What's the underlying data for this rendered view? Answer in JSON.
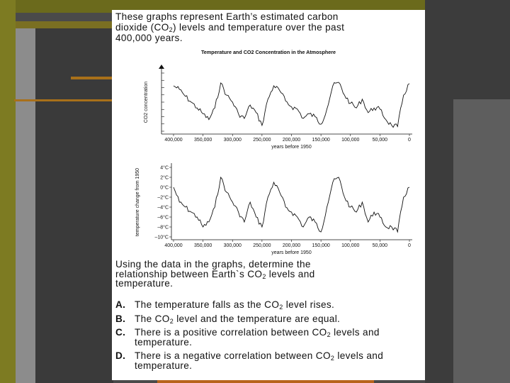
{
  "intro": {
    "text_1": "These graphs represent Earth’s estimated carbon",
    "text_2a": "dioxide (CO",
    "text_2_sub": "2",
    "text_2b": ") levels and temperature over the past",
    "text_3": "400,000 years."
  },
  "chart_data": [
    {
      "type": "line",
      "title": "Temperature and CO2 Concentration in the Atmosphere",
      "ylabel": "CO2 concentration",
      "xlabel": "years before 1950",
      "x_ticks": [
        "400,000",
        "350,000",
        "300,000",
        "250,000",
        "200,000",
        "150,000",
        "100,000",
        "50,000",
        "0"
      ],
      "xlim": [
        400000,
        0
      ],
      "ylim": [
        0,
        1
      ],
      "y_tick_labels": [],
      "x": [
        400000,
        390000,
        380000,
        370000,
        360000,
        350000,
        340000,
        330000,
        320000,
        310000,
        300000,
        290000,
        280000,
        270000,
        260000,
        250000,
        240000,
        230000,
        220000,
        210000,
        200000,
        190000,
        180000,
        170000,
        160000,
        150000,
        140000,
        130000,
        120000,
        110000,
        100000,
        90000,
        80000,
        70000,
        60000,
        50000,
        40000,
        30000,
        20000,
        10000,
        0
      ],
      "series": [
        {
          "values": [
            0.78,
            0.72,
            0.6,
            0.5,
            0.4,
            0.3,
            0.2,
            0.4,
            0.83,
            0.62,
            0.5,
            0.3,
            0.22,
            0.45,
            0.32,
            0.1,
            0.55,
            0.78,
            0.7,
            0.52,
            0.42,
            0.38,
            0.22,
            0.3,
            0.25,
            0.12,
            0.38,
            0.78,
            0.84,
            0.62,
            0.48,
            0.4,
            0.55,
            0.32,
            0.4,
            0.38,
            0.2,
            0.1,
            0.08,
            0.62,
            0.82
          ]
        }
      ]
    },
    {
      "type": "line",
      "title": "",
      "ylabel": "temperature change from 1950",
      "xlabel": "years before 1950",
      "x_ticks": [
        "400,000",
        "350,000",
        "300,000",
        "250,000",
        "200,000",
        "150,000",
        "100,000",
        "50,000",
        "0"
      ],
      "y_ticks": [
        "4°C",
        "2°C",
        "0°C",
        "–2°C",
        "–4°C",
        "–6°C",
        "–8°C",
        "–10°C"
      ],
      "xlim": [
        400000,
        0
      ],
      "ylim": [
        -10,
        4
      ],
      "x": [
        400000,
        390000,
        380000,
        370000,
        360000,
        350000,
        340000,
        330000,
        320000,
        310000,
        300000,
        290000,
        280000,
        270000,
        260000,
        250000,
        240000,
        230000,
        220000,
        210000,
        200000,
        190000,
        180000,
        170000,
        160000,
        150000,
        140000,
        130000,
        120000,
        110000,
        100000,
        90000,
        80000,
        70000,
        60000,
        50000,
        40000,
        30000,
        20000,
        10000,
        0
      ],
      "series": [
        {
          "values": [
            0,
            -3,
            -4,
            -5,
            -6,
            -8,
            -7,
            -4,
            2,
            -1,
            -3,
            -5,
            -7,
            -3,
            -6,
            -8,
            -2,
            1,
            -1,
            -4,
            -5,
            -6,
            -8,
            -6,
            -7,
            -9,
            -4,
            1,
            2,
            -2,
            -4,
            -5,
            -3,
            -7,
            -5,
            -6,
            -8,
            -8,
            -9,
            -2,
            0
          ]
        }
      ]
    }
  ],
  "question": {
    "line_1": "Using the data in the graphs, determine the",
    "line_2a": "relationship between Earth`s CO",
    "line_2_sub": "2",
    "line_2b": " levels and",
    "line_3": "temperature."
  },
  "options": [
    {
      "letter": "A.",
      "text_a": "The temperature falls as the CO",
      "sub": "2",
      "text_b": " level rises."
    },
    {
      "letter": "B.",
      "text_a": "The CO",
      "sub": "2",
      "text_b": " level and the temperature are equal."
    },
    {
      "letter": "C.",
      "text_a": "There is a positive correlation between CO",
      "sub": "2",
      "text_b": " levels and temperature."
    },
    {
      "letter": "D.",
      "text_a": "There is a negative correlation between CO",
      "sub": "2",
      "text_b": " levels and temperature."
    }
  ]
}
